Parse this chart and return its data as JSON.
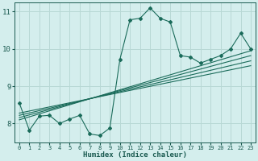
{
  "bg_color": "#d4eeed",
  "grid_color": "#b8d8d5",
  "line_color": "#1a6b5a",
  "text_color": "#1a5a50",
  "xlabel": "Humidex (Indice chaleur)",
  "xlim": [
    -0.5,
    23.5
  ],
  "ylim": [
    7.5,
    11.25
  ],
  "yticks": [
    8,
    9,
    10,
    11
  ],
  "xticks": [
    0,
    1,
    2,
    3,
    4,
    5,
    6,
    7,
    8,
    9,
    10,
    11,
    12,
    13,
    14,
    15,
    16,
    17,
    18,
    19,
    20,
    21,
    22,
    23
  ],
  "main_x": [
    0,
    1,
    2,
    3,
    4,
    5,
    6,
    7,
    8,
    9,
    10,
    11,
    12,
    13,
    14,
    15,
    16,
    17,
    18,
    19,
    20,
    21,
    22,
    23
  ],
  "main_y": [
    8.55,
    7.82,
    8.2,
    8.22,
    8.0,
    8.12,
    8.22,
    7.72,
    7.68,
    7.88,
    9.72,
    10.78,
    10.82,
    11.1,
    10.82,
    10.72,
    9.82,
    9.78,
    9.62,
    9.72,
    9.82,
    10.0,
    10.42,
    10.0
  ],
  "linear_lines": [
    {
      "x": [
        0,
        23
      ],
      "y": [
        8.28,
        9.55
      ]
    },
    {
      "x": [
        0,
        23
      ],
      "y": [
        8.22,
        9.68
      ]
    },
    {
      "x": [
        0,
        23
      ],
      "y": [
        8.16,
        9.82
      ]
    },
    {
      "x": [
        0,
        23
      ],
      "y": [
        8.1,
        9.95
      ]
    }
  ]
}
